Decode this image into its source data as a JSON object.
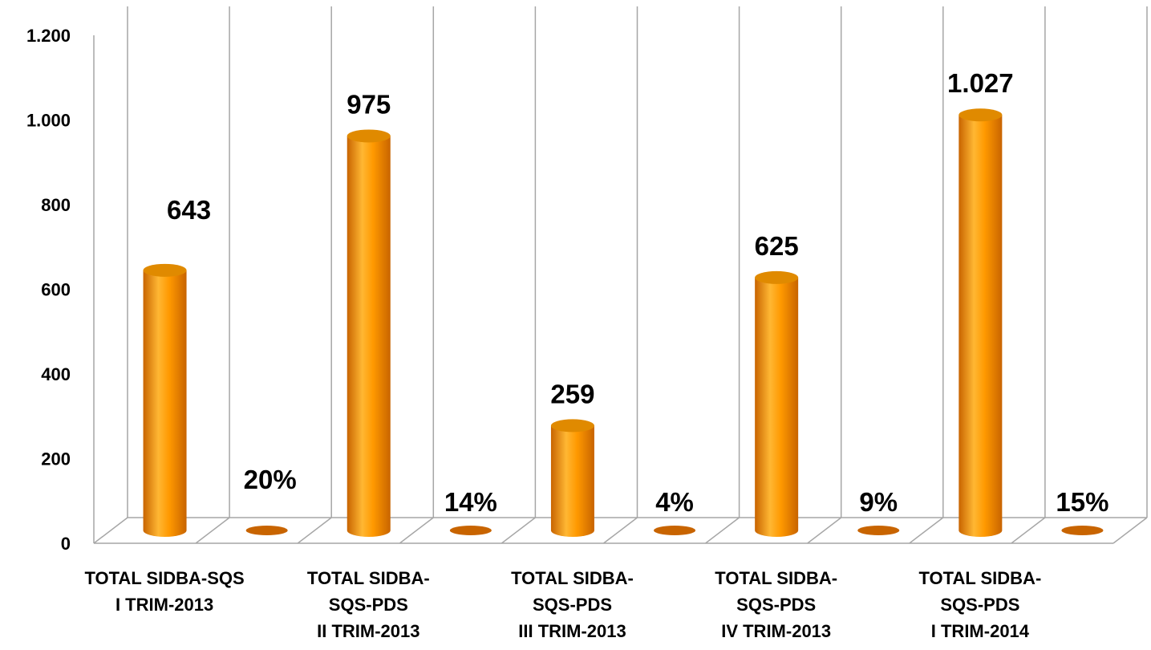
{
  "chart_data": {
    "type": "bar",
    "style": "3d-cylinder",
    "categories": [
      [
        "TOTAL SIDBA-SQS",
        "I TRIM-2013"
      ],
      [
        "TOTAL SIDBA-",
        "SQS-PDS",
        "II TRIM-2013"
      ],
      [
        "TOTAL SIDBA-",
        "SQS-PDS",
        "III TRIM-2013"
      ],
      [
        "TOTAL SIDBA-",
        "SQS-PDS",
        "IV TRIM-2013"
      ],
      [
        "TOTAL SIDBA-",
        "SQS-PDS",
        "I TRIM-2014"
      ]
    ],
    "series": [
      {
        "values": [
          643,
          975,
          259,
          625,
          1027
        ],
        "labels": [
          "643",
          "975",
          "259",
          "625",
          "1.027"
        ]
      },
      {
        "values": [
          0.2,
          0.14,
          0.04,
          0.09,
          0.15
        ],
        "labels": [
          "20%",
          "14%",
          "4%",
          "9%",
          "15%"
        ]
      }
    ],
    "ylim": [
      0,
      1200
    ],
    "yticks": [
      0,
      200,
      400,
      600,
      800,
      1000,
      1200
    ],
    "ytick_labels": [
      "0",
      "200",
      "400",
      "600",
      "800",
      "1.000",
      "1.200"
    ],
    "grid": true,
    "legend": "none",
    "colors": {
      "bar_light": "#ffb733",
      "bar_mid": "#ff9900",
      "bar_dark": "#c86400",
      "bar_top": "#e08a00",
      "grid": "#a6a6a6"
    }
  }
}
